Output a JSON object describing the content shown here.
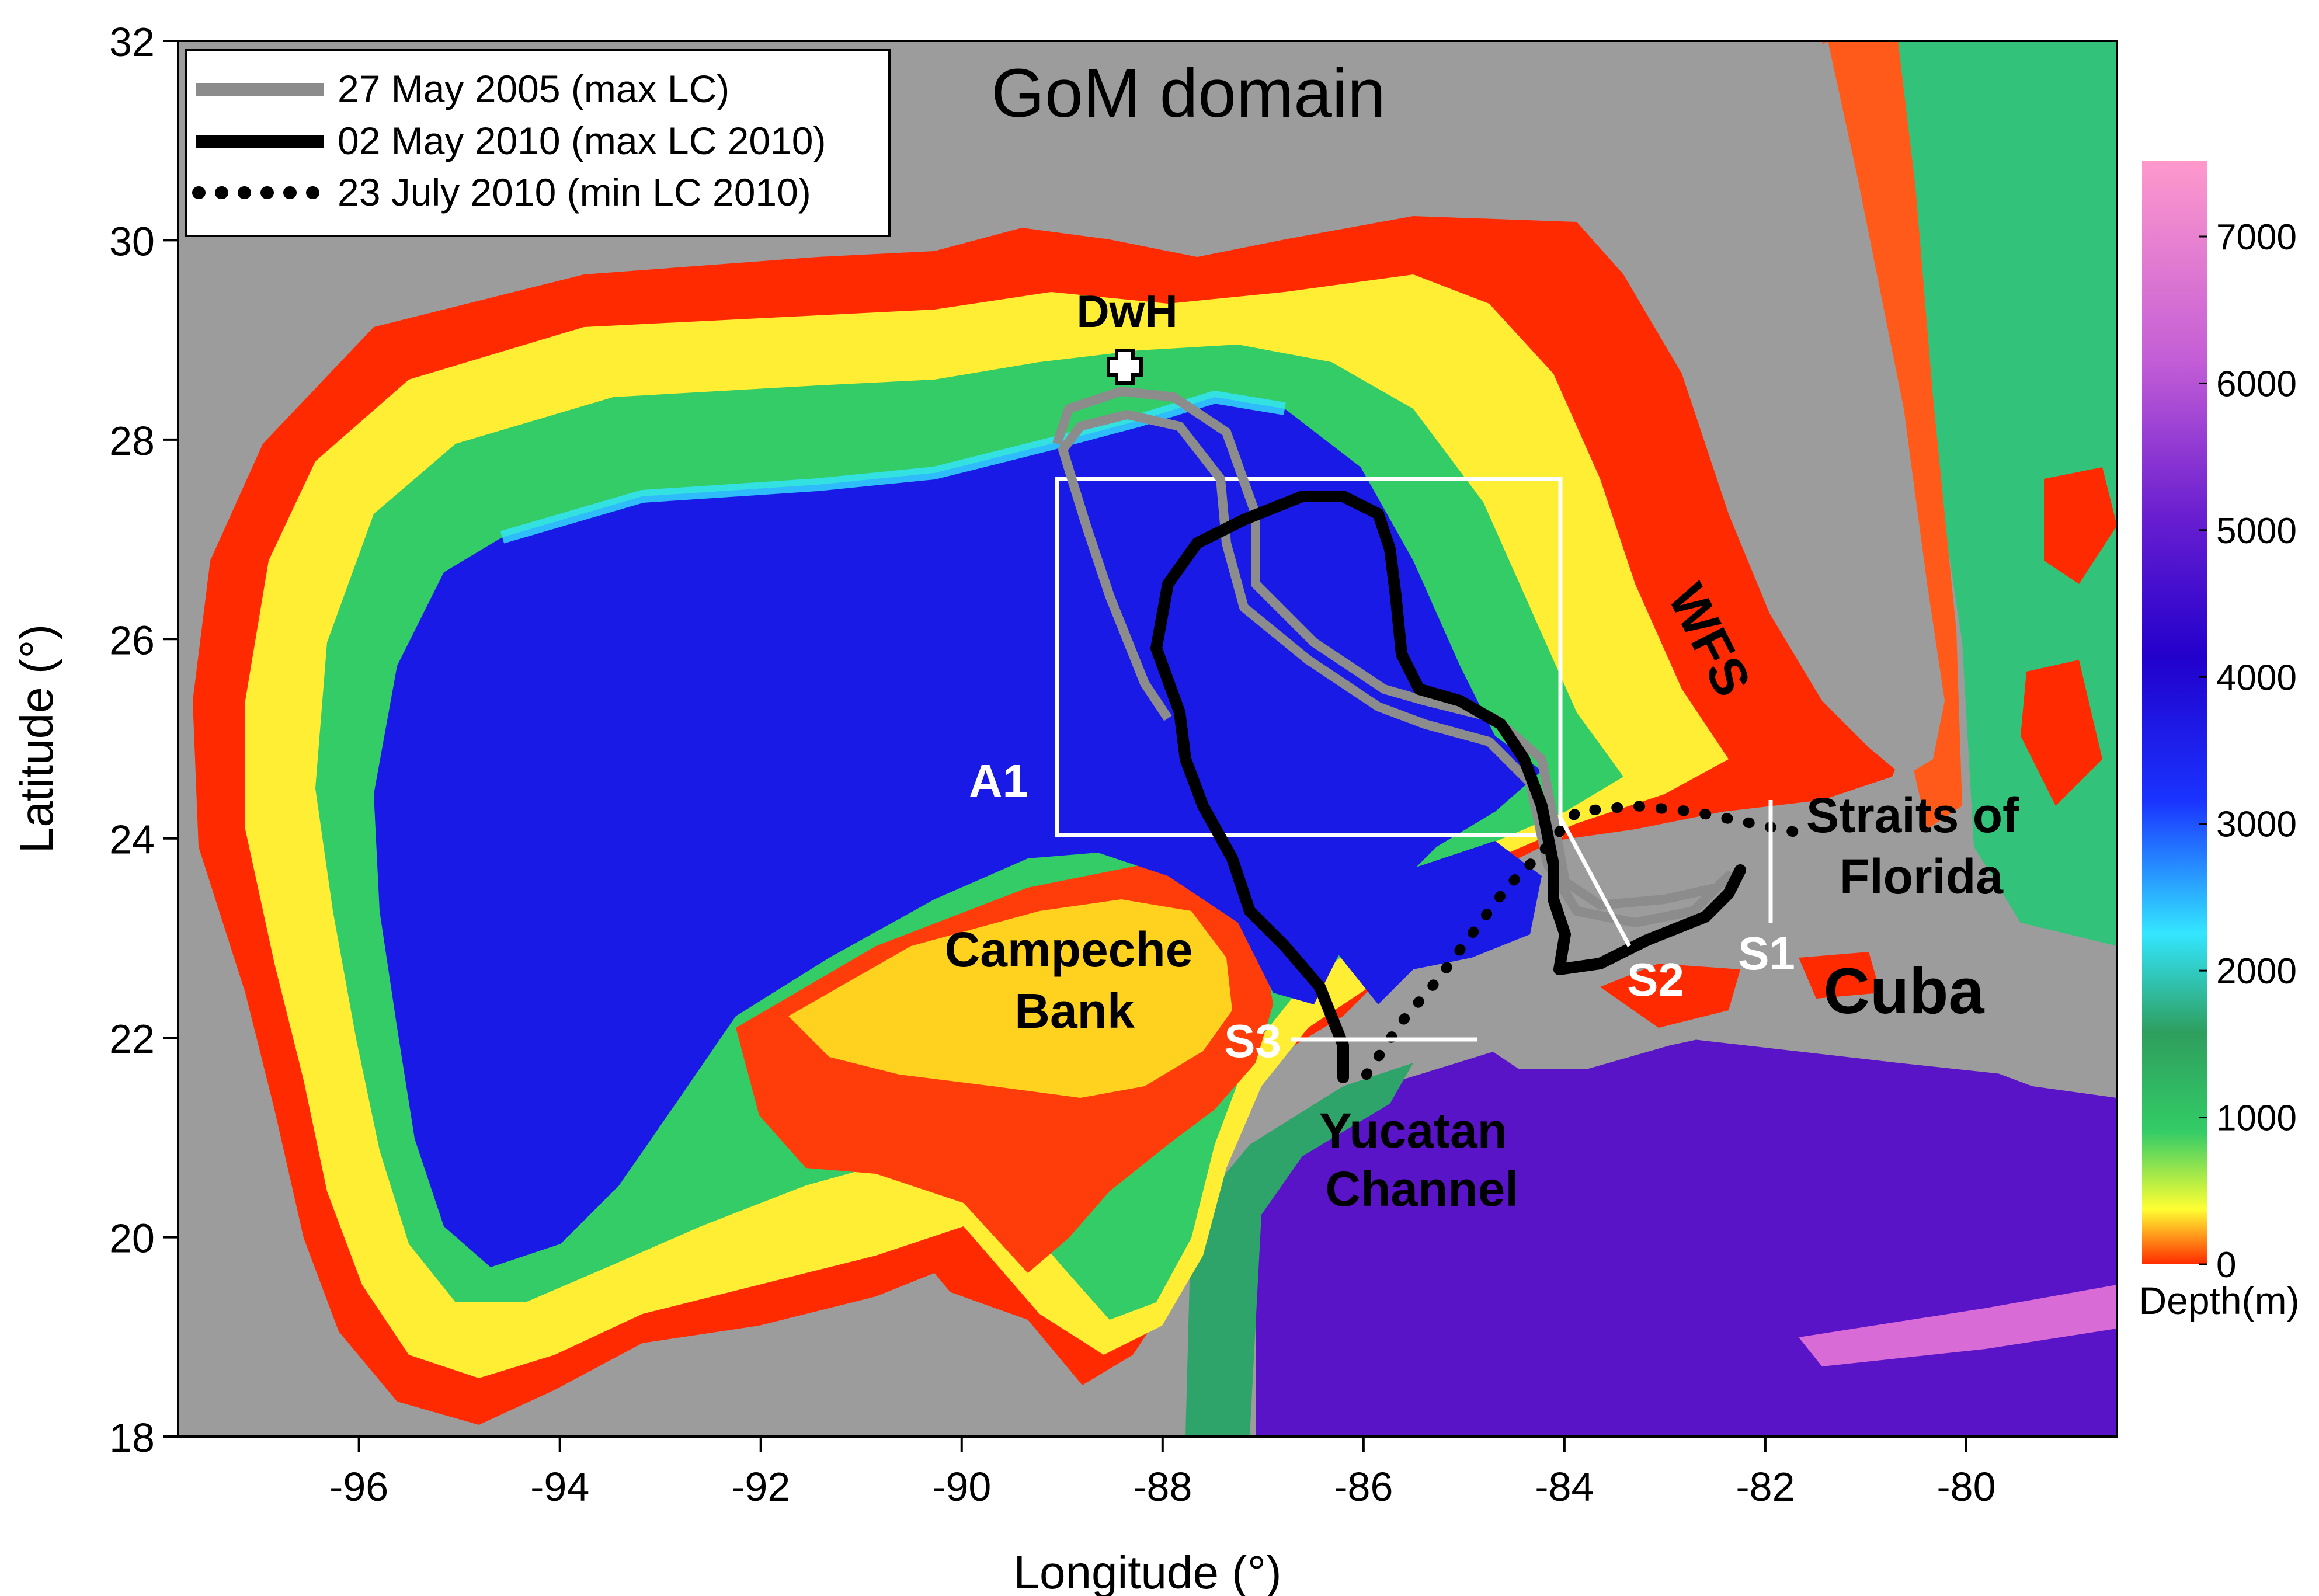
{
  "map": {
    "title": "GoM domain",
    "x_label": "Longitude (°)",
    "y_label": "Latitude (°)",
    "x_ticks": [
      "-96",
      "-94",
      "-92",
      "-90",
      "-88",
      "-86",
      "-84",
      "-82",
      "-80"
    ],
    "y_ticks": [
      "18",
      "20",
      "22",
      "24",
      "26",
      "28",
      "30",
      "32"
    ],
    "lon_range": [
      -97.8,
      -78.5
    ],
    "lat_range": [
      18,
      32
    ],
    "land_color": "#9c9c9c"
  },
  "legend": {
    "items": [
      {
        "label": "27 May 2005 (max LC)",
        "style": "solid",
        "color": "#8c8c8c"
      },
      {
        "label": "02 May 2010 (max LC 2010)",
        "style": "solid",
        "color": "#000000"
      },
      {
        "label": "23 July 2010 (min LC 2010)",
        "style": "dotted",
        "color": "#000000"
      }
    ]
  },
  "labels": {
    "dwh": "DwH",
    "wfs": "WFS",
    "straits_line1": "Straits of",
    "straits_line2": "Florida",
    "cuba": "Cuba",
    "campeche_line1": "Campeche",
    "campeche_line2": "Bank",
    "yucatan_line1": "Yucatan",
    "yucatan_line2": "Channel",
    "a1": "A1",
    "s1": "S1",
    "s2": "S2",
    "s3": "S3"
  },
  "colorbar": {
    "label": "Depth(m)",
    "ticks": [
      "7000",
      "6000",
      "5000",
      "4000",
      "3000",
      "2000",
      "1000",
      "0"
    ],
    "colors": [
      "#ff99cc",
      "#9933cc",
      "#2200cc",
      "#1a33ff",
      "#33e6ff",
      "#2e9e5e",
      "#33cc66",
      "#ffff33",
      "#ff2a00"
    ]
  }
}
